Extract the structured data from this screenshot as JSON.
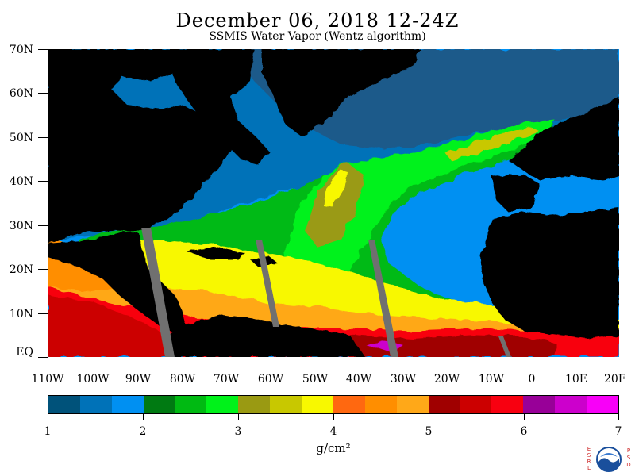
{
  "title": "December 06, 2018 12-24Z",
  "subtitle": "SSMIS Water Vapor (Wentz algorithm)",
  "map": {
    "region": "North Atlantic",
    "lat_labels": [
      "70N",
      "60N",
      "50N",
      "40N",
      "30N",
      "20N",
      "10N",
      "EQ"
    ],
    "lon_labels": [
      "110W",
      "100W",
      "90W",
      "80W",
      "70W",
      "60W",
      "50W",
      "40W",
      "30W",
      "20W",
      "10W",
      "0",
      "10E",
      "20E"
    ],
    "colors": {
      "land": "#000000",
      "missing_swath": "#707070",
      "ice": "#1f5a8a"
    }
  },
  "colorbar": {
    "tick_labels": [
      "1",
      "2",
      "3",
      "4",
      "5",
      "6",
      "7"
    ],
    "units": "g/cm²",
    "colors": [
      "#00527a",
      "#0072b8",
      "#0090f2",
      "#007a12",
      "#00ba12",
      "#00f21a",
      "#9a9a12",
      "#c8c800",
      "#f8f800",
      "#ff6810",
      "#ff8e00",
      "#ffa818",
      "#a00000",
      "#cc0000",
      "#f80010",
      "#980098",
      "#cc00cc",
      "#f800f8"
    ]
  },
  "logo": {
    "left_letters": "ESRL",
    "right_letters": "PSD",
    "center": "NOAA"
  }
}
